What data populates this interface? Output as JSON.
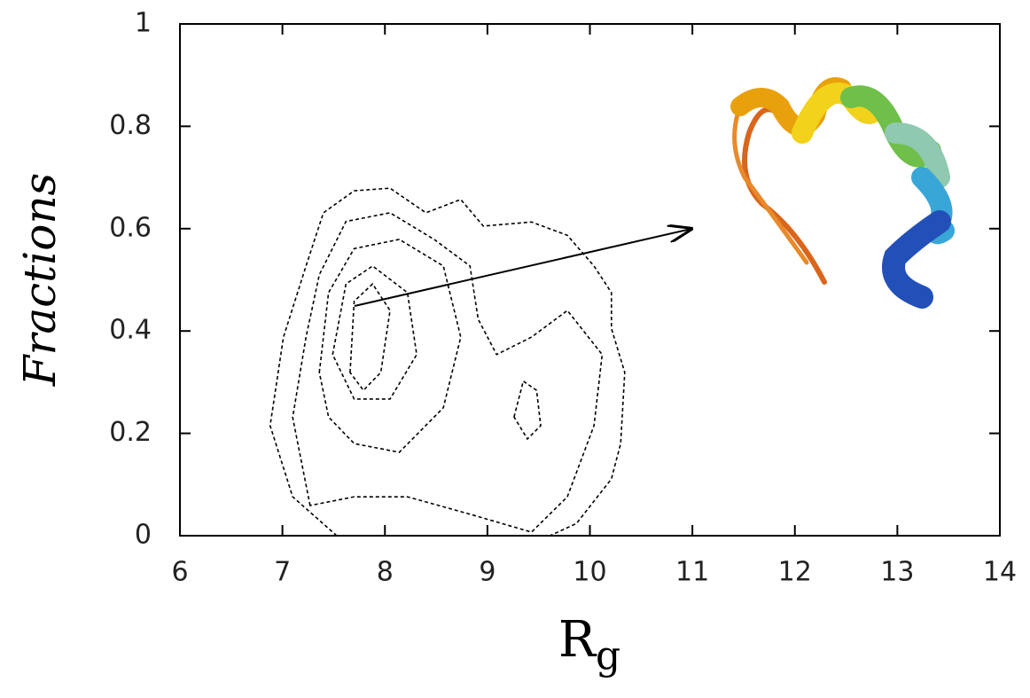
{
  "chart_data": {
    "type": "contour",
    "x_label": "R",
    "x_label_subscript": "g",
    "y_label": "Fractions",
    "xlim": [
      6,
      14
    ],
    "xticks": [
      6,
      7,
      8,
      9,
      10,
      11,
      12,
      13,
      14
    ],
    "ylim": [
      0,
      1
    ],
    "yticks": [
      0,
      0.2,
      0.4,
      0.6,
      0.8,
      1
    ],
    "color": "#000000",
    "contours": [
      {
        "x": [
          7.53,
          7.1,
          6.88,
          7.01,
          7.23,
          7.4,
          7.7,
          8.05,
          8.4,
          8.74,
          8.96,
          9.43,
          9.78,
          10.04,
          10.21,
          10.21,
          10.34,
          10.3,
          10.21,
          9.87,
          9.61
        ],
        "y": [
          0,
          0.076,
          0.215,
          0.388,
          0.527,
          0.631,
          0.674,
          0.679,
          0.631,
          0.657,
          0.605,
          0.613,
          0.587,
          0.527,
          0.475,
          0.405,
          0.319,
          0.18,
          0.111,
          0.024,
          0
        ]
      },
      {
        "x": [
          7.27,
          7.1,
          7.23,
          7.36,
          7.62,
          8.05,
          8.48,
          8.83,
          8.91,
          9.09,
          9.43,
          9.78,
          10.12,
          10.04,
          9.78,
          9.43,
          8.83,
          8.22,
          7.7
        ],
        "y": [
          0.059,
          0.231,
          0.388,
          0.51,
          0.614,
          0.631,
          0.579,
          0.527,
          0.423,
          0.354,
          0.388,
          0.44,
          0.354,
          0.215,
          0.076,
          0.007,
          0.042,
          0.076,
          0.076
        ]
      },
      {
        "x": [
          7.36,
          7.45,
          7.7,
          8.14,
          8.57,
          8.74,
          8.57,
          8.14,
          7.7,
          7.45
        ],
        "y": [
          0.319,
          0.475,
          0.561,
          0.579,
          0.527,
          0.388,
          0.25,
          0.163,
          0.18,
          0.232
        ]
      },
      {
        "x": [
          7.49,
          7.62,
          7.88,
          8.22,
          8.31,
          8.05,
          7.7
        ],
        "y": [
          0.354,
          0.492,
          0.527,
          0.475,
          0.354,
          0.267,
          0.267
        ]
      },
      {
        "x": [
          7.66,
          7.7,
          7.88,
          8.05,
          7.96,
          7.79
        ],
        "y": [
          0.319,
          0.458,
          0.492,
          0.44,
          0.319,
          0.284
        ]
      },
      {
        "x": [
          9.26,
          9.35,
          9.48,
          9.52,
          9.39
        ],
        "y": [
          0.232,
          0.302,
          0.284,
          0.215,
          0.189
        ]
      }
    ]
  }
}
